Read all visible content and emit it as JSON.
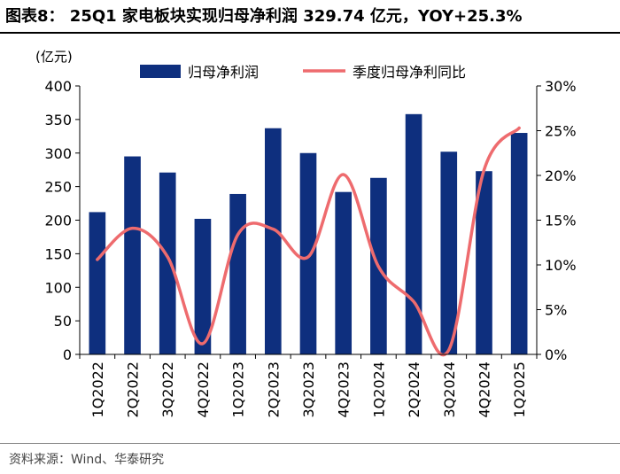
{
  "title": "图表8： 25Q1 家电板块实现归母净利润 329.74 亿元，YOY+25.3%",
  "source": "资料来源：Wind、华泰研究",
  "chart_data": {
    "type": "bar",
    "title": "25Q1 家电板块实现归母净利润 329.74 亿元，YOY+25.3%",
    "categories": [
      "1Q2022",
      "2Q2022",
      "3Q2022",
      "4Q2022",
      "1Q2023",
      "2Q2023",
      "3Q2023",
      "4Q2023",
      "1Q2024",
      "2Q2024",
      "3Q2024",
      "4Q2024",
      "1Q2025"
    ],
    "left_unit_label": "(亿元)",
    "ylim": [
      0,
      400
    ],
    "y_ticks": [
      0,
      50,
      100,
      150,
      200,
      250,
      300,
      350,
      400
    ],
    "y2lim": [
      0,
      30
    ],
    "y2_ticks": [
      "0%",
      "5%",
      "10%",
      "15%",
      "20%",
      "25%",
      "30%"
    ],
    "y2_tick_values": [
      0,
      5,
      10,
      15,
      20,
      25,
      30
    ],
    "series": [
      {
        "name": "归母净利润",
        "type": "bar",
        "axis": "left",
        "color": "#0e2f7e",
        "values": [
          212,
          295,
          271,
          202,
          239,
          337,
          300,
          242,
          263,
          358,
          302,
          273,
          330
        ]
      },
      {
        "name": "季度归母净利同比",
        "type": "line",
        "axis": "right",
        "color": "#ee6b6e",
        "values": [
          10.6,
          14.1,
          10.9,
          1.2,
          13.4,
          14.0,
          10.9,
          20.1,
          9.8,
          5.9,
          0.5,
          20.6,
          25.3
        ]
      }
    ],
    "legend_position": "top",
    "grid": false
  }
}
